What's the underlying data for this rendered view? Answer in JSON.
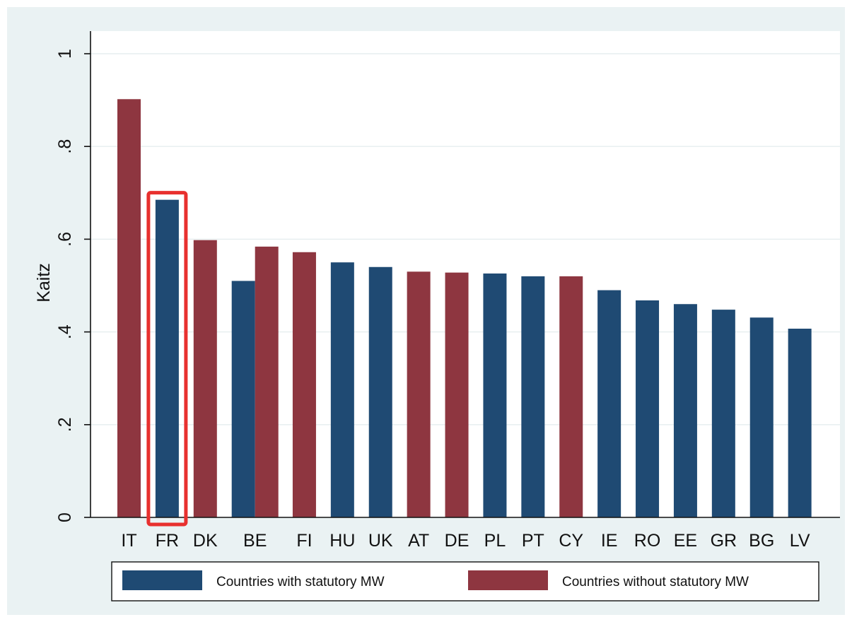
{
  "chart_data": {
    "type": "bar",
    "title": "",
    "xlabel": "",
    "ylabel": "Kaitz",
    "ylim": [
      0,
      1.0
    ],
    "yticks": [
      0,
      0.2,
      0.4,
      0.6,
      0.8,
      1.0
    ],
    "ytick_labels": [
      "0",
      ".2",
      ".4",
      ".6",
      ".8",
      "1"
    ],
    "grid": true,
    "legend_position": "bottom",
    "categories": [
      "IT",
      "FR",
      "DK",
      "BE",
      "FI",
      "HU",
      "UK",
      "AT",
      "DE",
      "PL",
      "PT",
      "CY",
      "IE",
      "RO",
      "EE",
      "GR",
      "BG",
      "LV"
    ],
    "series": [
      {
        "name": "Countries with statutory MW",
        "color": "#1f4a73",
        "values": [
          null,
          0.685,
          null,
          0.51,
          null,
          0.55,
          0.54,
          null,
          null,
          0.526,
          0.52,
          null,
          0.49,
          0.468,
          0.46,
          0.448,
          0.431,
          0.407
        ]
      },
      {
        "name": "Countries without statutory MW",
        "color": "#8e3640",
        "values": [
          0.902,
          null,
          0.598,
          0.584,
          0.572,
          null,
          null,
          0.53,
          0.528,
          null,
          null,
          0.52,
          null,
          null,
          null,
          null,
          null,
          null
        ]
      }
    ],
    "highlight": {
      "category": "FR",
      "color": "#e8302e"
    }
  },
  "colors": {
    "outer_background": "#eaf2f3",
    "plot_background": "#ffffff",
    "gridline": "#e6eeef",
    "axis": "#111111"
  }
}
